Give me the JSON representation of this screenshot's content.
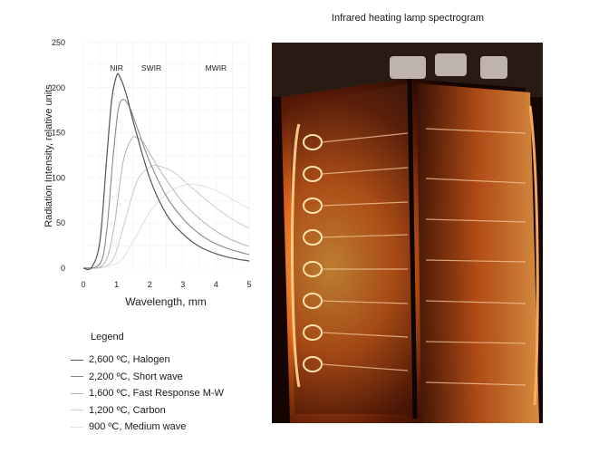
{
  "photo": {
    "title": "Infrared heating lamp spectrogram",
    "description_icon": "infrared-lamp-photo"
  },
  "legend": {
    "title": "Legend"
  },
  "chart_data": {
    "type": "line",
    "title": "",
    "xlabel": "Wavelength, mm",
    "ylabel": "Radiation Intensity, relative units",
    "xlim": [
      0,
      5
    ],
    "ylim": [
      0,
      250
    ],
    "x_ticks": [
      "0",
      "1",
      "2",
      "3",
      "4",
      "5"
    ],
    "y_ticks": [
      "0",
      "50",
      "100",
      "150",
      "200",
      "250"
    ],
    "grid": true,
    "legend_position": "below",
    "annotations": [
      {
        "text": "NIR",
        "x": 1.0,
        "y": 222
      },
      {
        "text": "SWIR",
        "x": 2.05,
        "y": 222
      },
      {
        "text": "MWIR",
        "x": 4.0,
        "y": 222
      }
    ],
    "series": [
      {
        "name": "2,600 ºC, Halogen",
        "color": "#555555",
        "width": 1.2,
        "x": [
          0,
          0.25,
          0.5,
          0.7,
          0.85,
          1.0,
          1.1,
          1.3,
          1.5,
          2.0,
          2.5,
          3.0,
          3.5,
          4.0,
          4.5,
          5.0
        ],
        "y": [
          0,
          1,
          30,
          120,
          185,
          213,
          212,
          192,
          163,
          100,
          60,
          38,
          24,
          16,
          11,
          8
        ]
      },
      {
        "name": "2,200 ºC, Short wave",
        "color": "#888888",
        "width": 1.1,
        "x": [
          0,
          0.5,
          0.7,
          0.9,
          1.05,
          1.2,
          1.4,
          1.6,
          2.0,
          2.5,
          3.0,
          3.5,
          4.0,
          4.5,
          5.0
        ],
        "y": [
          0,
          5,
          40,
          125,
          175,
          187,
          178,
          158,
          118,
          80,
          55,
          38,
          27,
          20,
          15
        ]
      },
      {
        "name": "1,600 ºC, Fast Response M-W",
        "color": "#b3b3b3",
        "width": 1.0,
        "x": [
          0,
          0.6,
          0.9,
          1.2,
          1.45,
          1.6,
          1.8,
          2.0,
          2.5,
          3.0,
          3.5,
          4.0,
          4.5,
          5.0
        ],
        "y": [
          0,
          4,
          40,
          118,
          143,
          145,
          140,
          127,
          98,
          73,
          55,
          41,
          31,
          24
        ]
      },
      {
        "name": "1,200 ºC, Carbon",
        "color": "#cccccc",
        "width": 1.0,
        "x": [
          0,
          0.8,
          1.2,
          1.6,
          2.0,
          2.3,
          2.7,
          3.0,
          3.5,
          4.0,
          4.5,
          5.0
        ],
        "y": [
          0,
          5,
          45,
          95,
          112,
          113,
          107,
          98,
          82,
          67,
          54,
          44
        ]
      },
      {
        "name": "900 ºC, Medium wave",
        "color": "#e0e0e0",
        "width": 1.0,
        "x": [
          0,
          1.0,
          1.5,
          2.0,
          2.5,
          3.0,
          3.5,
          4.0,
          4.5,
          5.0
        ],
        "y": [
          0,
          5,
          30,
          62,
          82,
          92,
          92,
          86,
          76,
          66
        ]
      }
    ]
  }
}
